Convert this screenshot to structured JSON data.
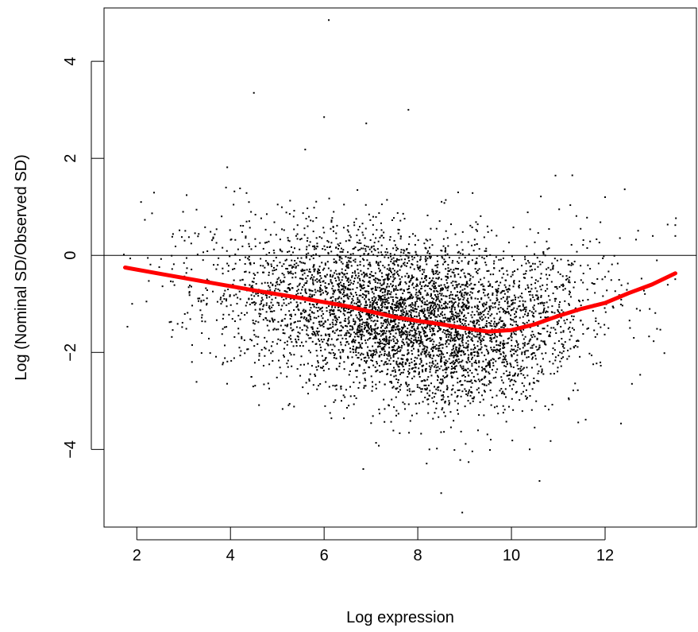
{
  "chart_data": {
    "type": "scatter",
    "title": "",
    "xlabel": "Log expression",
    "ylabel": "Log (Nominal SD/Observed SD)",
    "xlim": [
      1.3,
      13.95
    ],
    "ylim": [
      -5.6,
      5.1
    ],
    "x_ticks": [
      2,
      4,
      6,
      8,
      10,
      12
    ],
    "y_ticks": [
      -4,
      -2,
      0,
      2,
      4
    ],
    "x_tick_labels": [
      "2",
      "4",
      "6",
      "8",
      "10",
      "12"
    ],
    "y_tick_labels": [
      "−4",
      "−2",
      "0",
      "2",
      "4"
    ],
    "grid": false,
    "legend": "none",
    "reference_line": {
      "y": 0,
      "color": "#000000"
    },
    "series": [
      {
        "kind": "trend",
        "color": "#ff0000",
        "x": [
          1.75,
          2.5,
          3.5,
          4.5,
          5.5,
          6.5,
          7.0,
          7.5,
          8.0,
          8.5,
          9.0,
          9.5,
          10.0,
          10.5,
          11.0,
          11.5,
          12.0,
          12.5,
          13.0,
          13.5
        ],
        "y": [
          -0.25,
          -0.38,
          -0.55,
          -0.72,
          -0.88,
          -1.05,
          -1.16,
          -1.27,
          -1.35,
          -1.42,
          -1.5,
          -1.57,
          -1.54,
          -1.42,
          -1.25,
          -1.1,
          -0.98,
          -0.78,
          -0.6,
          -0.37
        ]
      },
      {
        "kind": "points",
        "color": "#000000",
        "count": 5000,
        "x_center": 7.8,
        "x_sd": 1.9,
        "y_sd": 0.85,
        "notable_points": [
          {
            "x": 6.1,
            "y": 4.85
          },
          {
            "x": 4.5,
            "y": 3.35
          },
          {
            "x": 7.8,
            "y": 3.0
          },
          {
            "x": 6.0,
            "y": 2.85
          },
          {
            "x": 6.9,
            "y": 2.72
          },
          {
            "x": 8.95,
            "y": -5.3
          },
          {
            "x": 8.5,
            "y": -4.9
          },
          {
            "x": 10.6,
            "y": -4.65
          },
          {
            "x": 1.8,
            "y": -1.47
          },
          {
            "x": 13.5,
            "y": 0.4
          },
          {
            "x": 11.3,
            "y": 1.65
          },
          {
            "x": 12.0,
            "y": 1.2
          }
        ]
      }
    ]
  }
}
